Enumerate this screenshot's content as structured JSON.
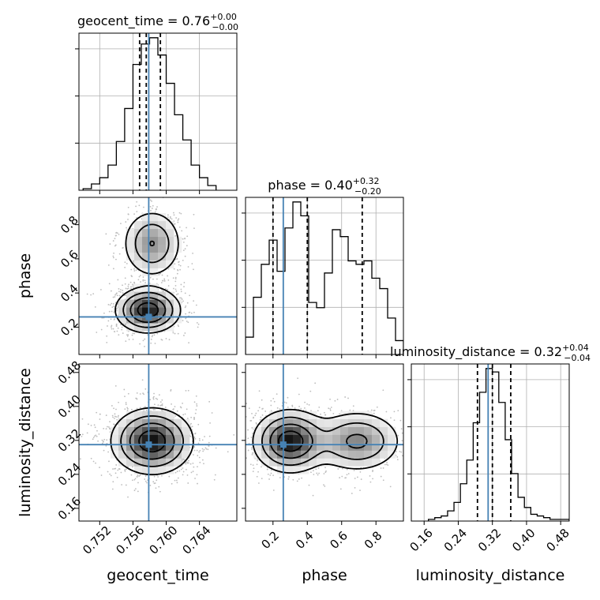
{
  "chart_data": {
    "type": "corner",
    "parameters": [
      {
        "key": "geocent_time",
        "label": "geocent_time",
        "range": [
          0.7495,
          0.7685
        ],
        "ticks": [
          0.752,
          0.756,
          0.76,
          0.764
        ],
        "tick_labels": [
          "0.752",
          "0.756",
          "0.760",
          "0.764"
        ],
        "title_main": "geocent_time = 0.76",
        "title_plus": "+0.00",
        "title_minus": "−0.00",
        "median": 0.7576,
        "quantiles": [
          0.7568,
          0.7576,
          0.7593
        ],
        "truth": 0.7579,
        "hist_edges": [
          0.75,
          0.751,
          0.752,
          0.753,
          0.754,
          0.755,
          0.756,
          0.757,
          0.758,
          0.759,
          0.76,
          0.761,
          0.762,
          0.763,
          0.764,
          0.765,
          0.766
        ],
        "hist_counts": [
          1,
          4,
          8,
          16,
          31,
          52,
          80,
          93,
          97,
          86,
          68,
          48,
          32,
          16,
          8,
          3
        ]
      },
      {
        "key": "phase",
        "label": "phase",
        "range": [
          0.04,
          0.96
        ],
        "ticks": [
          0.2,
          0.4,
          0.6,
          0.8
        ],
        "tick_labels": [
          "0.2",
          "0.4",
          "0.6",
          "0.8"
        ],
        "title_main": "phase = 0.40",
        "title_plus": "+0.32",
        "title_minus": "−0.20",
        "median": 0.4,
        "quantiles": [
          0.2,
          0.4,
          0.72
        ],
        "truth": 0.26,
        "hist_edges": [
          0.04,
          0.086,
          0.132,
          0.178,
          0.224,
          0.27,
          0.316,
          0.362,
          0.408,
          0.454,
          0.5,
          0.546,
          0.592,
          0.638,
          0.684,
          0.73,
          0.776,
          0.822,
          0.868,
          0.914,
          0.96
        ],
        "hist_counts": [
          10,
          33,
          52,
          66,
          48,
          73,
          88,
          80,
          30,
          27,
          47,
          72,
          68,
          54,
          52,
          54,
          44,
          38,
          21,
          8
        ]
      },
      {
        "key": "luminosity_distance",
        "label": "luminosity_distance",
        "range": [
          0.13,
          0.5
        ],
        "ticks": [
          0.16,
          0.24,
          0.32,
          0.4,
          0.48
        ],
        "tick_labels": [
          "0.16",
          "0.24",
          "0.32",
          "0.40",
          "0.48"
        ],
        "title_main": "luminosity_distance = 0.32",
        "title_plus": "+0.04",
        "title_minus": "−0.04",
        "median": 0.32,
        "quantiles": [
          0.285,
          0.32,
          0.363
        ],
        "truth": 0.31,
        "hist_edges": [
          0.17,
          0.185,
          0.2,
          0.215,
          0.23,
          0.245,
          0.26,
          0.275,
          0.29,
          0.305,
          0.32,
          0.335,
          0.35,
          0.365,
          0.38,
          0.395,
          0.41,
          0.425,
          0.44,
          0.455,
          0.47,
          0.485,
          0.5
        ],
        "hist_counts": [
          1,
          2,
          3,
          6,
          11,
          22,
          36,
          58,
          76,
          90,
          88,
          70,
          48,
          28,
          14,
          8,
          4,
          3,
          2,
          1,
          1,
          1
        ]
      }
    ],
    "pairs": [
      {
        "x": "geocent_time",
        "y": "phase",
        "truth": [
          0.7579,
          0.26
        ],
        "modes": [
          {
            "center": [
              0.7578,
              0.3
            ],
            "spread": [
              0.0019,
              0.065
            ],
            "weight": 1.0
          },
          {
            "center": [
              0.7583,
              0.69
            ],
            "spread": [
              0.0018,
              0.1
            ],
            "weight": 0.55
          }
        ]
      },
      {
        "x": "geocent_time",
        "y": "luminosity_distance",
        "truth": [
          0.7579,
          0.31
        ],
        "modes": [
          {
            "center": [
              0.7583,
              0.318
            ],
            "spread": [
              0.0024,
              0.038
            ],
            "weight": 1.0
          }
        ]
      },
      {
        "x": "phase",
        "y": "luminosity_distance",
        "truth": [
          0.26,
          0.31
        ],
        "modes": [
          {
            "center": [
              0.3,
              0.318
            ],
            "spread": [
              0.105,
              0.036
            ],
            "weight": 1.0
          },
          {
            "center": [
              0.69,
              0.318
            ],
            "spread": [
              0.13,
              0.036
            ],
            "weight": 0.6
          }
        ]
      }
    ],
    "grid": true,
    "truth_color": "#4682b4"
  }
}
